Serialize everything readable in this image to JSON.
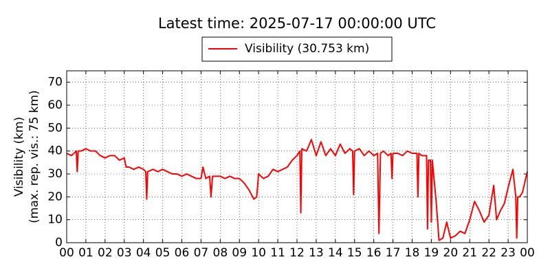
{
  "chart_data": {
    "type": "line",
    "title": "Latest time: 2025-07-17 00:00:00 UTC",
    "y_label": [
      "Visibility (km)",
      "(max. rep. vis.: 75 km)"
    ],
    "x": [
      0,
      0.25,
      0.5,
      0.55,
      0.6,
      0.75,
      1.0,
      1.25,
      1.5,
      1.75,
      2.0,
      2.25,
      2.5,
      2.75,
      3.0,
      3.1,
      3.25,
      3.5,
      3.75,
      4.0,
      4.12,
      4.17,
      4.22,
      4.5,
      4.75,
      5.0,
      5.25,
      5.5,
      5.75,
      6.0,
      6.25,
      6.5,
      6.75,
      7.0,
      7.1,
      7.25,
      7.45,
      7.52,
      7.6,
      7.75,
      8.0,
      8.25,
      8.5,
      8.75,
      9.0,
      9.25,
      9.5,
      9.75,
      9.9,
      10.0,
      10.25,
      10.5,
      10.75,
      11.0,
      11.25,
      11.5,
      11.75,
      12.0,
      12.15,
      12.2,
      12.25,
      12.5,
      12.75,
      13.0,
      13.25,
      13.5,
      13.75,
      14.0,
      14.25,
      14.5,
      14.75,
      14.9,
      14.95,
      15.0,
      15.25,
      15.5,
      15.75,
      16.0,
      16.2,
      16.27,
      16.35,
      16.5,
      16.75,
      16.9,
      16.95,
      17.0,
      17.25,
      17.5,
      17.75,
      18.0,
      18.25,
      18.3,
      18.35,
      18.5,
      18.75,
      18.8,
      18.85,
      18.95,
      19.0,
      19.05,
      19.25,
      19.4,
      19.6,
      19.8,
      20.0,
      20.25,
      20.5,
      20.75,
      21.0,
      21.25,
      21.5,
      21.75,
      22.0,
      22.25,
      22.4,
      22.6,
      22.8,
      23.0,
      23.25,
      23.4,
      23.45,
      23.5,
      23.6,
      23.75,
      24.0
    ],
    "series": [
      {
        "name": "Visibility (30.753 km)",
        "color": "#ff0000",
        "values": [
          39,
          38,
          40,
          31,
          40,
          40,
          41,
          40,
          40,
          38,
          37,
          38,
          38,
          36,
          37,
          33,
          33,
          32,
          33,
          32,
          31,
          19,
          31,
          32,
          31,
          32,
          31,
          30,
          30,
          29,
          30,
          29,
          28,
          28,
          33,
          28,
          29,
          20,
          29,
          29,
          29,
          28,
          29,
          28,
          28,
          26,
          23,
          19,
          20,
          30,
          28,
          29,
          32,
          31,
          32,
          33,
          36,
          38,
          40,
          13,
          41,
          40,
          45,
          38,
          44,
          38,
          41,
          38,
          43,
          39,
          41,
          40,
          21,
          40,
          41,
          38,
          40,
          38,
          39,
          4,
          39,
          40,
          38,
          39,
          28,
          39,
          39,
          38,
          40,
          39,
          39,
          20,
          39,
          38,
          38,
          6,
          36,
          36,
          9,
          36,
          18,
          1,
          2,
          9,
          2,
          3,
          5,
          4,
          10,
          18,
          14,
          9,
          12,
          25,
          10,
          14,
          17,
          24,
          32,
          20,
          2,
          20,
          20,
          22,
          31
        ]
      }
    ],
    "xlim": [
      0,
      24
    ],
    "ylim": [
      0,
      75
    ],
    "xticks": [
      {
        "value": 0,
        "label": "00"
      },
      {
        "value": 1,
        "label": "01"
      },
      {
        "value": 2,
        "label": "02"
      },
      {
        "value": 3,
        "label": "03"
      },
      {
        "value": 4,
        "label": "04"
      },
      {
        "value": 5,
        "label": "05"
      },
      {
        "value": 6,
        "label": "06"
      },
      {
        "value": 7,
        "label": "07"
      },
      {
        "value": 8,
        "label": "08"
      },
      {
        "value": 9,
        "label": "09"
      },
      {
        "value": 10,
        "label": "10"
      },
      {
        "value": 11,
        "label": "11"
      },
      {
        "value": 12,
        "label": "12"
      },
      {
        "value": 13,
        "label": "13"
      },
      {
        "value": 14,
        "label": "14"
      },
      {
        "value": 15,
        "label": "15"
      },
      {
        "value": 16,
        "label": "16"
      },
      {
        "value": 17,
        "label": "17"
      },
      {
        "value": 18,
        "label": "18"
      },
      {
        "value": 19,
        "label": "19"
      },
      {
        "value": 20,
        "label": "20"
      },
      {
        "value": 21,
        "label": "21"
      },
      {
        "value": 22,
        "label": "22"
      },
      {
        "value": 23,
        "label": "23"
      },
      {
        "value": 24,
        "label": "00"
      }
    ],
    "yticks": [
      0,
      10,
      20,
      30,
      40,
      50,
      60,
      70
    ],
    "grid": true
  }
}
